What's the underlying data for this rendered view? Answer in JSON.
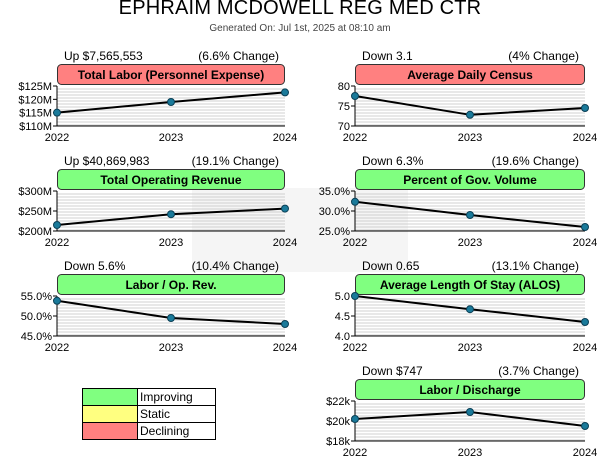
{
  "header": {
    "title": "EPHRAIM MCDOWELL REG MED CTR",
    "subtitle": "Generated On: Jul 1st, 2025 at 08:10 am"
  },
  "legend": {
    "items": [
      {
        "label": "Improving",
        "color": "#80ff80"
      },
      {
        "label": "Static",
        "color": "#ffff80"
      },
      {
        "label": "Declining",
        "color": "#ff8080"
      }
    ]
  },
  "chart_data": [
    {
      "type": "line",
      "title": "Total Labor (Personnel Expense)",
      "status": "declining",
      "change_text": "Up $7,565,553",
      "change_pct": "(6.6% Change)",
      "x": [
        "2022",
        "2023",
        "2024"
      ],
      "values": [
        115,
        119,
        122.6
      ],
      "ylim": [
        110,
        125
      ],
      "yticks": [
        110,
        115,
        120,
        125
      ],
      "ytick_labels": [
        "$110M",
        "$115M",
        "$120M",
        "$125M"
      ],
      "grid": true
    },
    {
      "type": "line",
      "title": "Average Daily Census",
      "status": "declining",
      "change_text": "Down 3.1",
      "change_pct": "(4% Change)",
      "x": [
        "2022",
        "2023",
        "2024"
      ],
      "values": [
        77.5,
        72.8,
        74.5
      ],
      "ylim": [
        70,
        80
      ],
      "yticks": [
        70,
        75,
        80
      ],
      "ytick_labels": [
        "70",
        "75",
        "80"
      ],
      "grid": true
    },
    {
      "type": "line",
      "title": "Total Operating Revenue",
      "status": "improving",
      "change_text": "Up $40,869,983",
      "change_pct": "(19.1% Change)",
      "x": [
        "2022",
        "2023",
        "2024"
      ],
      "values": [
        215,
        242,
        256
      ],
      "ylim": [
        200,
        300
      ],
      "yticks": [
        200,
        250,
        300
      ],
      "ytick_labels": [
        "$200M",
        "$250M",
        "$300M"
      ],
      "grid": true
    },
    {
      "type": "line",
      "title": "Percent of Gov. Volume",
      "status": "improving",
      "change_text": "Down 6.3%",
      "change_pct": "(19.6% Change)",
      "x": [
        "2022",
        "2023",
        "2024"
      ],
      "values": [
        32.3,
        29.0,
        26.0
      ],
      "ylim": [
        25,
        35
      ],
      "yticks": [
        25,
        30,
        35
      ],
      "ytick_labels": [
        "25.0%",
        "30.0%",
        "35.0%"
      ],
      "grid": true
    },
    {
      "type": "line",
      "title": "Labor / Op. Rev.",
      "status": "improving",
      "change_text": "Down 5.6%",
      "change_pct": "(10.4% Change)",
      "x": [
        "2022",
        "2023",
        "2024"
      ],
      "values": [
        53.8,
        49.5,
        48.0
      ],
      "ylim": [
        45,
        55
      ],
      "yticks": [
        45,
        50,
        55
      ],
      "ytick_labels": [
        "45.0%",
        "50.0%",
        "55.0%"
      ],
      "grid": true
    },
    {
      "type": "line",
      "title": "Average Length Of Stay (ALOS)",
      "status": "improving",
      "change_text": "Down 0.65",
      "change_pct": "(13.1% Change)",
      "x": [
        "2022",
        "2023",
        "2024"
      ],
      "values": [
        5.0,
        4.67,
        4.35
      ],
      "ylim": [
        4.0,
        5.0
      ],
      "yticks": [
        4.0,
        4.5,
        5.0
      ],
      "ytick_labels": [
        "4.0",
        "4.5",
        "5.0"
      ],
      "grid": true
    },
    {
      "type": "line",
      "title": "Labor / Discharge",
      "status": "improving",
      "change_text": "Down $747",
      "change_pct": "(3.7% Change)",
      "x": [
        "2022",
        "2023",
        "2024"
      ],
      "values": [
        20.2,
        20.9,
        19.5
      ],
      "ylim": [
        18,
        22
      ],
      "yticks": [
        18,
        20,
        22
      ],
      "ytick_labels": [
        "$18k",
        "$20k",
        "$22k"
      ],
      "grid": true
    }
  ]
}
